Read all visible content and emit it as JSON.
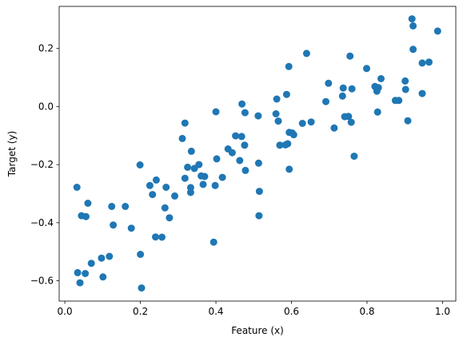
{
  "chart_data": {
    "type": "scatter",
    "title": "",
    "xlabel": "Feature (x)",
    "ylabel": "Target (y)",
    "xlim": [
      -0.015,
      1.035
    ],
    "ylim": [
      -0.67,
      0.345
    ],
    "xticks": [
      0.0,
      0.2,
      0.4,
      0.6,
      0.8,
      1.0
    ],
    "xtick_labels": [
      "0.0",
      "0.2",
      "0.4",
      "0.6",
      "0.8",
      "1.0"
    ],
    "yticks": [
      -0.6,
      -0.4,
      -0.2,
      0.0,
      0.2
    ],
    "ytick_labels": [
      "−0.6",
      "−0.4",
      "−0.2",
      "0.0",
      "0.2"
    ],
    "grid": false,
    "marker_color": "#1f77b4",
    "series": [
      {
        "points": [
          [
            0.032,
            -0.278
          ],
          [
            0.034,
            -0.572
          ],
          [
            0.04,
            -0.607
          ],
          [
            0.044,
            -0.376
          ],
          [
            0.054,
            -0.575
          ],
          [
            0.056,
            -0.379
          ],
          [
            0.061,
            -0.333
          ],
          [
            0.07,
            -0.54
          ],
          [
            0.097,
            -0.522
          ],
          [
            0.101,
            -0.587
          ],
          [
            0.118,
            -0.516
          ],
          [
            0.124,
            -0.344
          ],
          [
            0.128,
            -0.408
          ],
          [
            0.16,
            -0.344
          ],
          [
            0.176,
            -0.419
          ],
          [
            0.199,
            -0.201
          ],
          [
            0.2,
            -0.509
          ],
          [
            0.203,
            -0.625
          ],
          [
            0.225,
            -0.272
          ],
          [
            0.232,
            -0.303
          ],
          [
            0.24,
            -0.449
          ],
          [
            0.242,
            -0.253
          ],
          [
            0.257,
            -0.45
          ],
          [
            0.265,
            -0.349
          ],
          [
            0.268,
            -0.278
          ],
          [
            0.277,
            -0.383
          ],
          [
            0.291,
            -0.308
          ],
          [
            0.311,
            -0.11
          ],
          [
            0.318,
            -0.057
          ],
          [
            0.318,
            -0.247
          ],
          [
            0.325,
            -0.209
          ],
          [
            0.333,
            -0.296
          ],
          [
            0.333,
            -0.279
          ],
          [
            0.335,
            -0.154
          ],
          [
            0.343,
            -0.213
          ],
          [
            0.355,
            -0.2
          ],
          [
            0.361,
            -0.239
          ],
          [
            0.366,
            -0.268
          ],
          [
            0.37,
            -0.241
          ],
          [
            0.394,
            -0.467
          ],
          [
            0.398,
            -0.272
          ],
          [
            0.4,
            -0.018
          ],
          [
            0.402,
            -0.18
          ],
          [
            0.417,
            -0.244
          ],
          [
            0.432,
            -0.146
          ],
          [
            0.443,
            -0.159
          ],
          [
            0.452,
            -0.101
          ],
          [
            0.463,
            -0.186
          ],
          [
            0.468,
            -0.103
          ],
          [
            0.469,
            0.009
          ],
          [
            0.476,
            -0.133
          ],
          [
            0.477,
            -0.021
          ],
          [
            0.478,
            -0.22
          ],
          [
            0.512,
            -0.032
          ],
          [
            0.513,
            -0.195
          ],
          [
            0.514,
            -0.376
          ],
          [
            0.515,
            -0.292
          ],
          [
            0.559,
            -0.025
          ],
          [
            0.561,
            0.026
          ],
          [
            0.565,
            -0.05
          ],
          [
            0.569,
            -0.133
          ],
          [
            0.584,
            -0.132
          ],
          [
            0.587,
            0.042
          ],
          [
            0.59,
            -0.128
          ],
          [
            0.593,
            0.138
          ],
          [
            0.594,
            -0.089
          ],
          [
            0.594,
            -0.216
          ],
          [
            0.602,
            -0.091
          ],
          [
            0.606,
            -0.097
          ],
          [
            0.629,
            -0.058
          ],
          [
            0.64,
            0.183
          ],
          [
            0.652,
            -0.053
          ],
          [
            0.691,
            0.017
          ],
          [
            0.698,
            0.08
          ],
          [
            0.713,
            -0.074
          ],
          [
            0.735,
            0.036
          ],
          [
            0.737,
            0.064
          ],
          [
            0.741,
            -0.035
          ],
          [
            0.751,
            -0.034
          ],
          [
            0.755,
            0.174
          ],
          [
            0.758,
            -0.054
          ],
          [
            0.76,
            0.061
          ],
          [
            0.766,
            -0.171
          ],
          [
            0.799,
            0.131
          ],
          [
            0.821,
            0.069
          ],
          [
            0.826,
            0.053
          ],
          [
            0.828,
            -0.019
          ],
          [
            0.83,
            0.065
          ],
          [
            0.837,
            0.096
          ],
          [
            0.875,
            0.021
          ],
          [
            0.884,
            0.021
          ],
          [
            0.901,
            0.088
          ],
          [
            0.902,
            0.059
          ],
          [
            0.908,
            -0.049
          ],
          [
            0.919,
            0.302
          ],
          [
            0.922,
            0.278
          ],
          [
            0.922,
            0.197
          ],
          [
            0.946,
            0.15
          ],
          [
            0.946,
            0.045
          ],
          [
            0.964,
            0.153
          ],
          [
            0.987,
            0.26
          ]
        ]
      }
    ]
  }
}
